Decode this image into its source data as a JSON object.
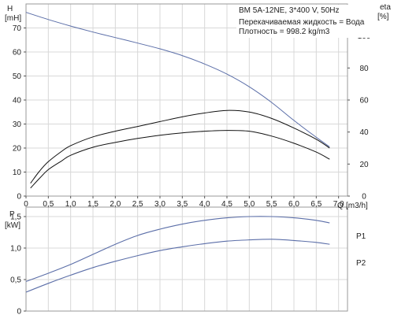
{
  "chart_data": [
    {
      "type": "line",
      "title": "BM 5A-12NE, 3*400 V, 50Hz",
      "info": [
        "Перекачиваемая жидкость = Вода",
        "Плотность = 998.2 kg/m3"
      ],
      "ylabel": "H",
      "yunit": "[mH]",
      "xlabel": "Q",
      "xunit": "[m3/h]",
      "y2label": "eta",
      "y2unit": "[%]",
      "xlim": [
        0,
        7.2
      ],
      "ylim": [
        0,
        80
      ],
      "y2lim": [
        0,
        120
      ],
      "grid": true,
      "x_ticks": [
        "0",
        "0,5",
        "1,0",
        "1,5",
        "2,0",
        "2,5",
        "3,0",
        "3,5",
        "4,0",
        "4,5",
        "5,0",
        "5,5",
        "6,0",
        "6,5",
        "7,0"
      ],
      "y_ticks": [
        "0",
        "10",
        "20",
        "30",
        "40",
        "50",
        "60",
        "70"
      ],
      "y2_ticks": [
        "0",
        "20",
        "40",
        "60",
        "80",
        "100"
      ],
      "series": [
        {
          "axis": "left",
          "color": "#5b6ea8",
          "x": [
            0,
            0.5,
            1.0,
            1.5,
            2.0,
            2.5,
            3.0,
            3.5,
            4.0,
            4.5,
            5.0,
            5.5,
            6.0,
            6.5,
            6.8
          ],
          "values": [
            76.5,
            73.5,
            70.8,
            68.3,
            66.0,
            63.7,
            61.3,
            58.5,
            55.0,
            50.8,
            45.5,
            39.0,
            31.5,
            24.5,
            20.5
          ]
        },
        {
          "axis": "right",
          "color": "#111111",
          "x": [
            0.1,
            0.3,
            0.5,
            0.8,
            1.0,
            1.5,
            2.0,
            2.5,
            3.0,
            3.5,
            4.0,
            4.5,
            5.0,
            5.5,
            6.0,
            6.5,
            6.8
          ],
          "values": [
            8,
            15.5,
            21.5,
            28,
            31.5,
            37,
            40.5,
            43.5,
            46.5,
            49.5,
            51.9,
            53.5,
            52.5,
            48.5,
            42.5,
            35.5,
            30
          ]
        },
        {
          "axis": "right",
          "color": "#111111",
          "x": [
            0.1,
            0.3,
            0.5,
            0.8,
            1.0,
            1.5,
            2.0,
            2.5,
            3.0,
            3.5,
            4.0,
            4.5,
            5.0,
            5.5,
            6.0,
            6.5,
            6.8
          ],
          "values": [
            5,
            11,
            16.5,
            22,
            25.5,
            30.5,
            33.5,
            36,
            38,
            39.5,
            40.5,
            41,
            40.5,
            37.5,
            33,
            27.5,
            23
          ]
        }
      ]
    },
    {
      "type": "line",
      "ylabel": "P",
      "yunit": "[kW]",
      "xlim": [
        0,
        7.2
      ],
      "ylim": [
        0,
        1.65
      ],
      "grid": true,
      "y_ticks": [
        "0",
        "0,5",
        "1,0",
        "1,5"
      ],
      "series": [
        {
          "name": "P1",
          "color": "#5b6ea8",
          "x": [
            0,
            0.5,
            1.0,
            1.5,
            2.0,
            2.5,
            3.0,
            3.5,
            4.0,
            4.5,
            5.0,
            5.5,
            6.0,
            6.5,
            6.8
          ],
          "values": [
            0.47,
            0.6,
            0.74,
            0.9,
            1.06,
            1.2,
            1.3,
            1.38,
            1.44,
            1.48,
            1.5,
            1.5,
            1.48,
            1.44,
            1.4
          ]
        },
        {
          "name": "P2",
          "color": "#5b6ea8",
          "x": [
            0,
            0.5,
            1.0,
            1.5,
            2.0,
            2.5,
            3.0,
            3.5,
            4.0,
            4.5,
            5.0,
            5.5,
            6.0,
            6.5,
            6.8
          ],
          "values": [
            0.3,
            0.44,
            0.57,
            0.69,
            0.79,
            0.88,
            0.96,
            1.02,
            1.07,
            1.11,
            1.13,
            1.14,
            1.12,
            1.09,
            1.06
          ]
        }
      ]
    }
  ]
}
